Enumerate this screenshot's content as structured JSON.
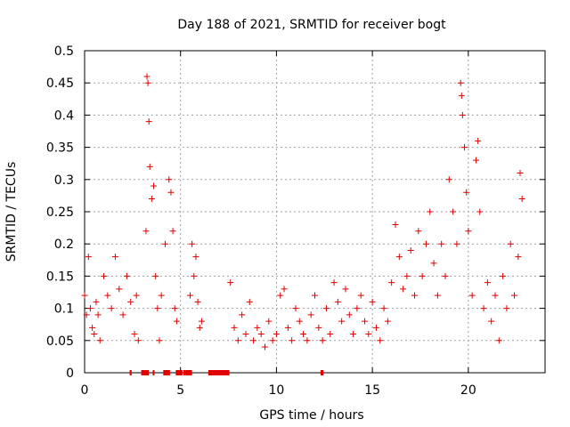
{
  "chart_data": {
    "type": "scatter",
    "title": "Day 188 of 2021, SRMTID for receiver bogt",
    "xlabel": "GPS time / hours",
    "ylabel": "SRMTID / TECUs",
    "xlim": [
      0,
      24
    ],
    "ylim": [
      0,
      0.5
    ],
    "xticks": [
      0,
      5,
      10,
      15,
      20
    ],
    "yticks": [
      0,
      0.05,
      0.1,
      0.15,
      0.2,
      0.25,
      0.3,
      0.35,
      0.4,
      0.45,
      0.5
    ],
    "grid": true,
    "marker": "+",
    "color": "#e00000",
    "series": [
      {
        "name": "SRMTID",
        "x": [
          0.0,
          0.1,
          0.2,
          0.3,
          0.4,
          0.5,
          0.6,
          0.7,
          0.8,
          1.0,
          1.2,
          1.4,
          1.6,
          1.8,
          2.0,
          2.2,
          2.4,
          2.6,
          2.7,
          2.8,
          3.2,
          3.25,
          3.3,
          3.35,
          3.4,
          3.5,
          3.6,
          3.7,
          3.8,
          3.9,
          4.0,
          4.2,
          4.4,
          4.5,
          4.6,
          4.7,
          4.8,
          5.5,
          5.6,
          5.7,
          5.8,
          5.9,
          6.0,
          6.1,
          7.6,
          7.8,
          8.0,
          8.2,
          8.4,
          8.6,
          8.8,
          9.0,
          9.2,
          9.4,
          9.6,
          9.8,
          10.0,
          10.2,
          10.4,
          10.6,
          10.8,
          11.0,
          11.2,
          11.4,
          11.6,
          11.8,
          12.0,
          12.2,
          12.4,
          12.6,
          12.8,
          13.0,
          13.2,
          13.4,
          13.6,
          13.8,
          14.0,
          14.2,
          14.4,
          14.6,
          14.8,
          15.0,
          15.2,
          15.4,
          15.6,
          15.8,
          16.0,
          16.2,
          16.4,
          16.6,
          16.8,
          17.0,
          17.2,
          17.4,
          17.6,
          17.8,
          18.0,
          18.2,
          18.4,
          18.6,
          18.8,
          19.0,
          19.2,
          19.4,
          19.6,
          19.65,
          19.7,
          19.8,
          19.9,
          20.0,
          20.2,
          20.4,
          20.5,
          20.6,
          20.8,
          21.0,
          21.2,
          21.4,
          21.6,
          21.8,
          22.0,
          22.2,
          22.4,
          22.6,
          22.7,
          22.8
        ],
        "y": [
          0.12,
          0.09,
          0.18,
          0.1,
          0.07,
          0.06,
          0.11,
          0.09,
          0.05,
          0.15,
          0.12,
          0.1,
          0.18,
          0.13,
          0.09,
          0.15,
          0.11,
          0.06,
          0.12,
          0.05,
          0.22,
          0.46,
          0.45,
          0.39,
          0.32,
          0.27,
          0.29,
          0.15,
          0.1,
          0.05,
          0.12,
          0.2,
          0.3,
          0.28,
          0.22,
          0.1,
          0.08,
          0.12,
          0.2,
          0.15,
          0.18,
          0.11,
          0.07,
          0.08,
          0.14,
          0.07,
          0.05,
          0.09,
          0.06,
          0.11,
          0.05,
          0.07,
          0.06,
          0.04,
          0.08,
          0.05,
          0.06,
          0.12,
          0.13,
          0.07,
          0.05,
          0.1,
          0.08,
          0.06,
          0.05,
          0.09,
          0.12,
          0.07,
          0.05,
          0.1,
          0.06,
          0.14,
          0.11,
          0.08,
          0.13,
          0.09,
          0.06,
          0.1,
          0.12,
          0.08,
          0.06,
          0.11,
          0.07,
          0.05,
          0.1,
          0.08,
          0.14,
          0.23,
          0.18,
          0.13,
          0.15,
          0.19,
          0.12,
          0.22,
          0.15,
          0.2,
          0.25,
          0.17,
          0.12,
          0.2,
          0.15,
          0.3,
          0.25,
          0.2,
          0.45,
          0.43,
          0.4,
          0.35,
          0.28,
          0.22,
          0.12,
          0.33,
          0.36,
          0.25,
          0.1,
          0.14,
          0.08,
          0.12,
          0.05,
          0.15,
          0.1,
          0.2,
          0.12,
          0.18,
          0.31,
          0.27
        ]
      }
    ],
    "gap_segments": [
      [
        2.35,
        2.45
      ],
      [
        2.95,
        3.35
      ],
      [
        3.55,
        3.6
      ],
      [
        4.1,
        4.45
      ],
      [
        4.75,
        5.1
      ],
      [
        5.15,
        5.2
      ],
      [
        5.25,
        5.6
      ],
      [
        6.45,
        7.55
      ],
      [
        12.3,
        12.45
      ]
    ]
  }
}
